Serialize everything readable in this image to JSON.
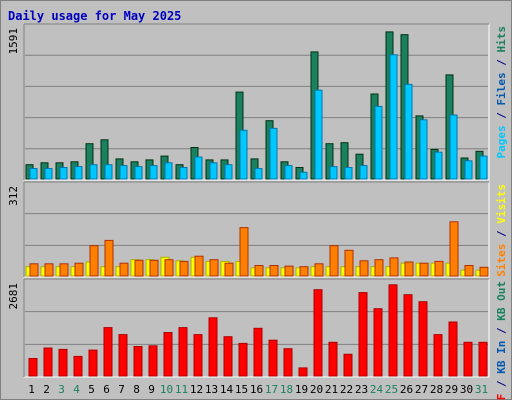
{
  "chart_data": {
    "type": "bar",
    "title": "Daily usage for May 2025",
    "categories": [
      "1",
      "2",
      "3",
      "4",
      "5",
      "6",
      "7",
      "8",
      "9",
      "10",
      "11",
      "12",
      "13",
      "14",
      "15",
      "16",
      "17",
      "18",
      "19",
      "20",
      "21",
      "22",
      "23",
      "24",
      "25",
      "26",
      "27",
      "28",
      "29",
      "30",
      "31"
    ],
    "weekend_days": [
      "3",
      "4",
      "10",
      "11",
      "17",
      "18",
      "24",
      "25",
      "31"
    ],
    "panels": [
      {
        "id": "hits-files-pages",
        "max_label": "1591",
        "ymax": 1591,
        "right_label_parts": [
          {
            "text": "Pages",
            "color": "#00c8ff"
          },
          {
            "text": " / ",
            "color": "#000080"
          },
          {
            "text": "Files",
            "color": "#0058b0"
          },
          {
            "text": " / ",
            "color": "#000080"
          },
          {
            "text": "Hits",
            "color": "#1a8060"
          }
        ],
        "series": [
          {
            "name": "Hits",
            "color": "#1a8060",
            "values": [
              150,
              170,
              170,
              180,
              370,
              410,
              210,
              180,
              200,
              240,
              150,
              330,
              200,
              200,
              910,
              210,
              610,
              180,
              120,
              1330,
              370,
              380,
              260,
              890,
              1540,
              1510,
              660,
              310,
              1090,
              220,
              290
            ]
          },
          {
            "name": "Files",
            "color": "#0058b0",
            "values": [
              0,
              0,
              0,
              0,
              0,
              0,
              0,
              0,
              0,
              0,
              0,
              0,
              0,
              0,
              0,
              0,
              0,
              0,
              0,
              0,
              0,
              0,
              0,
              0,
              0,
              0,
              0,
              0,
              0,
              0,
              0
            ]
          },
          {
            "name": "Pages",
            "color": "#00c8ff",
            "values": [
              110,
              110,
              120,
              130,
              150,
              150,
              140,
              130,
              140,
              170,
              120,
              230,
              170,
              150,
              510,
              110,
              530,
              140,
              70,
              930,
              130,
              120,
              140,
              760,
              1300,
              990,
              620,
              280,
              670,
              190,
              240
            ]
          }
        ]
      },
      {
        "id": "visits-sites",
        "max_label": "312",
        "ymax": 312,
        "right_label_parts": [
          {
            "text": "Sites",
            "color": "#ff8000"
          },
          {
            "text": " / ",
            "color": "#000080"
          },
          {
            "text": "Visits",
            "color": "#ffff00"
          }
        ],
        "series": [
          {
            "name": "Visits",
            "color": "#ffff00",
            "values": [
              32,
              32,
              32,
              32,
              48,
              32,
              32,
              56,
              56,
              64,
              52,
              64,
              50,
              50,
              50,
              28,
              28,
              28,
              28,
              32,
              32,
              32,
              32,
              32,
              32,
              44,
              44,
              44,
              44,
              20,
              20
            ]
          },
          {
            "name": "Sites",
            "color": "#ff8000",
            "values": [
              42,
              42,
              42,
              44,
              104,
              122,
              44,
              54,
              54,
              56,
              50,
              68,
              56,
              44,
              166,
              36,
              36,
              34,
              32,
              42,
              104,
              88,
              52,
              56,
              62,
              48,
              44,
              50,
              186,
              36,
              30
            ]
          }
        ]
      },
      {
        "id": "kb",
        "max_label": "2681",
        "ymax": 2681,
        "right_label_parts": [
          {
            "text": "KB F",
            "color": "#ff0000"
          },
          {
            "text": " / ",
            "color": "#000080"
          },
          {
            "text": "KB In",
            "color": "#0058b0"
          },
          {
            "text": " / ",
            "color": "#000080"
          },
          {
            "text": "KB Out",
            "color": "#1a8060"
          }
        ],
        "series": [
          {
            "name": "KB F",
            "color": "#ff0000",
            "values": [
              500,
              800,
              760,
              560,
              740,
              1380,
              1180,
              840,
              860,
              1240,
              1380,
              1180,
              1660,
              1120,
              930,
              1360,
              1020,
              780,
              230,
              2460,
              960,
              620,
              2380,
              1920,
              2600,
              2320,
              2120,
              1180,
              1540,
              960,
              960
            ]
          }
        ]
      }
    ]
  }
}
